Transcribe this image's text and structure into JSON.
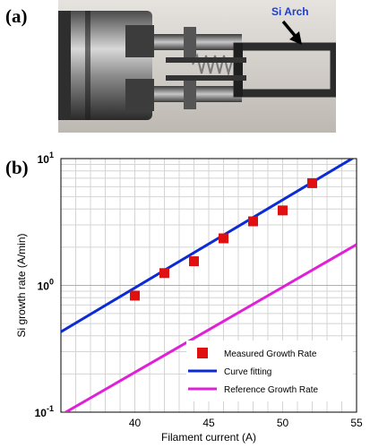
{
  "panels": {
    "a_label": "(a)",
    "b_label": "(b)"
  },
  "photo": {
    "annotation": "Si Arch",
    "annotation_color": "#1f3fc4"
  },
  "chart_data": {
    "type": "scatter",
    "xlabel": "Filament current (A)",
    "ylabel": "Si growth rate (A/min)",
    "xlim": [
      35,
      55
    ],
    "ylim": [
      0.1,
      10
    ],
    "yscale": "log",
    "grid": true,
    "x_ticks": [
      "40",
      "45",
      "50",
      "55"
    ],
    "y_ticks": [
      {
        "base": "10",
        "exp": "-1",
        "value": 0.1
      },
      {
        "base": "10",
        "exp": "0",
        "value": 1
      },
      {
        "base": "10",
        "exp": "1",
        "value": 10
      }
    ],
    "legend_position": "bottom-right",
    "series": [
      {
        "name": "Measured Growth Rate",
        "kind": "marker",
        "color": "#e01010",
        "x": [
          40,
          42,
          44,
          46,
          48,
          50,
          52
        ],
        "y": [
          0.83,
          1.25,
          1.55,
          2.35,
          3.2,
          3.9,
          6.4
        ]
      },
      {
        "name": "Curve fitting",
        "kind": "line",
        "color": "#0a2bd6",
        "x": [
          35,
          55
        ],
        "y": [
          0.43,
          10.5
        ]
      },
      {
        "name": "Reference Growth Rate",
        "kind": "line",
        "color": "#e020d8",
        "x": [
          35,
          55
        ],
        "y": [
          0.095,
          2.1
        ]
      }
    ]
  }
}
